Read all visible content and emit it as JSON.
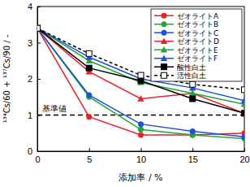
{
  "chart_data": {
    "type": "line",
    "x_label": "添加率 / %",
    "y_label": "¹³⁴Cs/60 + ¹³⁷Cs/90 / -",
    "x": [
      0,
      5,
      10,
      15,
      20
    ],
    "xlim": [
      0,
      20
    ],
    "xticks": [
      0,
      5,
      10,
      15,
      20
    ],
    "ylim": [
      0,
      4
    ],
    "yticks": [
      0,
      1,
      2,
      3,
      4
    ],
    "legend": "upper-right",
    "annotations": [
      {
        "text": "基準値",
        "y": 1
      }
    ],
    "series": [
      {
        "name": "ゼオライトA",
        "color": "#e8212b",
        "marker": "circle",
        "line_style": "solid",
        "values": [
          3.4,
          0.95,
          0.45,
          0.45,
          0.5
        ]
      },
      {
        "name": "ゼオライトB",
        "color": "#1fa83a",
        "marker": "circle",
        "line_style": "solid",
        "values": [
          3.4,
          1.5,
          0.6,
          0.45,
          0.35
        ]
      },
      {
        "name": "ゼオライトC",
        "color": "#1f4fd6",
        "marker": "circle",
        "line_style": "solid",
        "values": [
          3.4,
          1.55,
          0.75,
          0.55,
          0.4
        ]
      },
      {
        "name": "ゼオライトD",
        "color": "#e8212b",
        "marker": "triangle",
        "line_style": "solid",
        "values": [
          3.4,
          2.2,
          1.45,
          1.6,
          1.05
        ]
      },
      {
        "name": "ゼオライトE",
        "color": "#1fa83a",
        "marker": "triangle",
        "line_style": "solid",
        "values": [
          3.4,
          2.5,
          1.9,
          1.6,
          1.3
        ]
      },
      {
        "name": "ゼオライトF",
        "color": "#1f4fd6",
        "marker": "triangle",
        "line_style": "solid",
        "values": [
          3.4,
          2.6,
          2.0,
          1.75,
          1.4
        ]
      },
      {
        "name": "酸性白土",
        "color": "#000000",
        "marker": "square",
        "line_style": "solid",
        "values": [
          3.4,
          2.3,
          1.95,
          1.45,
          1.05
        ]
      },
      {
        "name": "活性白土",
        "color": "#000000",
        "marker": "open-square",
        "line_style": "dashed",
        "values": [
          3.4,
          2.7,
          2.1,
          1.85,
          1.7
        ]
      }
    ]
  }
}
